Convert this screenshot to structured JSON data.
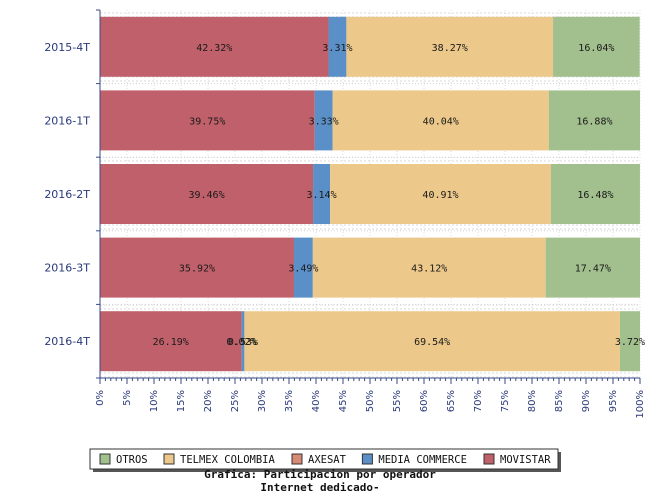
{
  "chart_data": {
    "type": "bar",
    "orientation": "horizontal",
    "stacked": true,
    "title": "Grafica: Participacion por operador",
    "subtitle": "Internet dedicado-",
    "xlabel": "",
    "ylabel": "",
    "xlim": [
      0,
      100
    ],
    "x_tick_step": 5,
    "x_tick_suffix": "%",
    "grid": true,
    "legend_position": "bottom",
    "categories": [
      "2015-4T",
      "2016-1T",
      "2016-2T",
      "2016-3T",
      "2016-4T"
    ],
    "series": [
      {
        "name": "MOVISTAR",
        "color": "#c0606a",
        "values": [
          42.32,
          39.75,
          39.46,
          35.92,
          26.19
        ]
      },
      {
        "name": "AXESAT",
        "color": "#d98a74",
        "values": [
          0.0,
          0.0,
          0.0,
          0.0,
          0.02
        ]
      },
      {
        "name": "MEDIA COMMERCE",
        "color": "#5b8fc7",
        "values": [
          3.31,
          3.33,
          3.14,
          3.49,
          0.53
        ]
      },
      {
        "name": "TELMEX COLOMBIA",
        "color": "#ecc98a",
        "values": [
          38.27,
          40.04,
          40.91,
          43.12,
          69.54
        ]
      },
      {
        "name": "OTROS",
        "color": "#a2bf8e",
        "values": [
          16.04,
          16.88,
          16.48,
          17.47,
          3.72
        ]
      }
    ],
    "data_labels": [
      [
        "42.32%",
        "",
        "3.31%",
        "38.27%",
        "16.04%"
      ],
      [
        "39.75%",
        "",
        "3.33%",
        "40.04%",
        "16.88%"
      ],
      [
        "39.46%",
        "",
        "3.14%",
        "40.91%",
        "16.48%"
      ],
      [
        "35.92%",
        "",
        "3.49%",
        "43.12%",
        "17.47%"
      ],
      [
        "26.19%",
        "0.02%",
        "0.53%",
        "69.54%",
        "3.72%"
      ]
    ],
    "legend_order": [
      "OTROS",
      "TELMEX COLOMBIA",
      "AXESAT",
      "MEDIA COMMERCE",
      "MOVISTAR"
    ]
  }
}
